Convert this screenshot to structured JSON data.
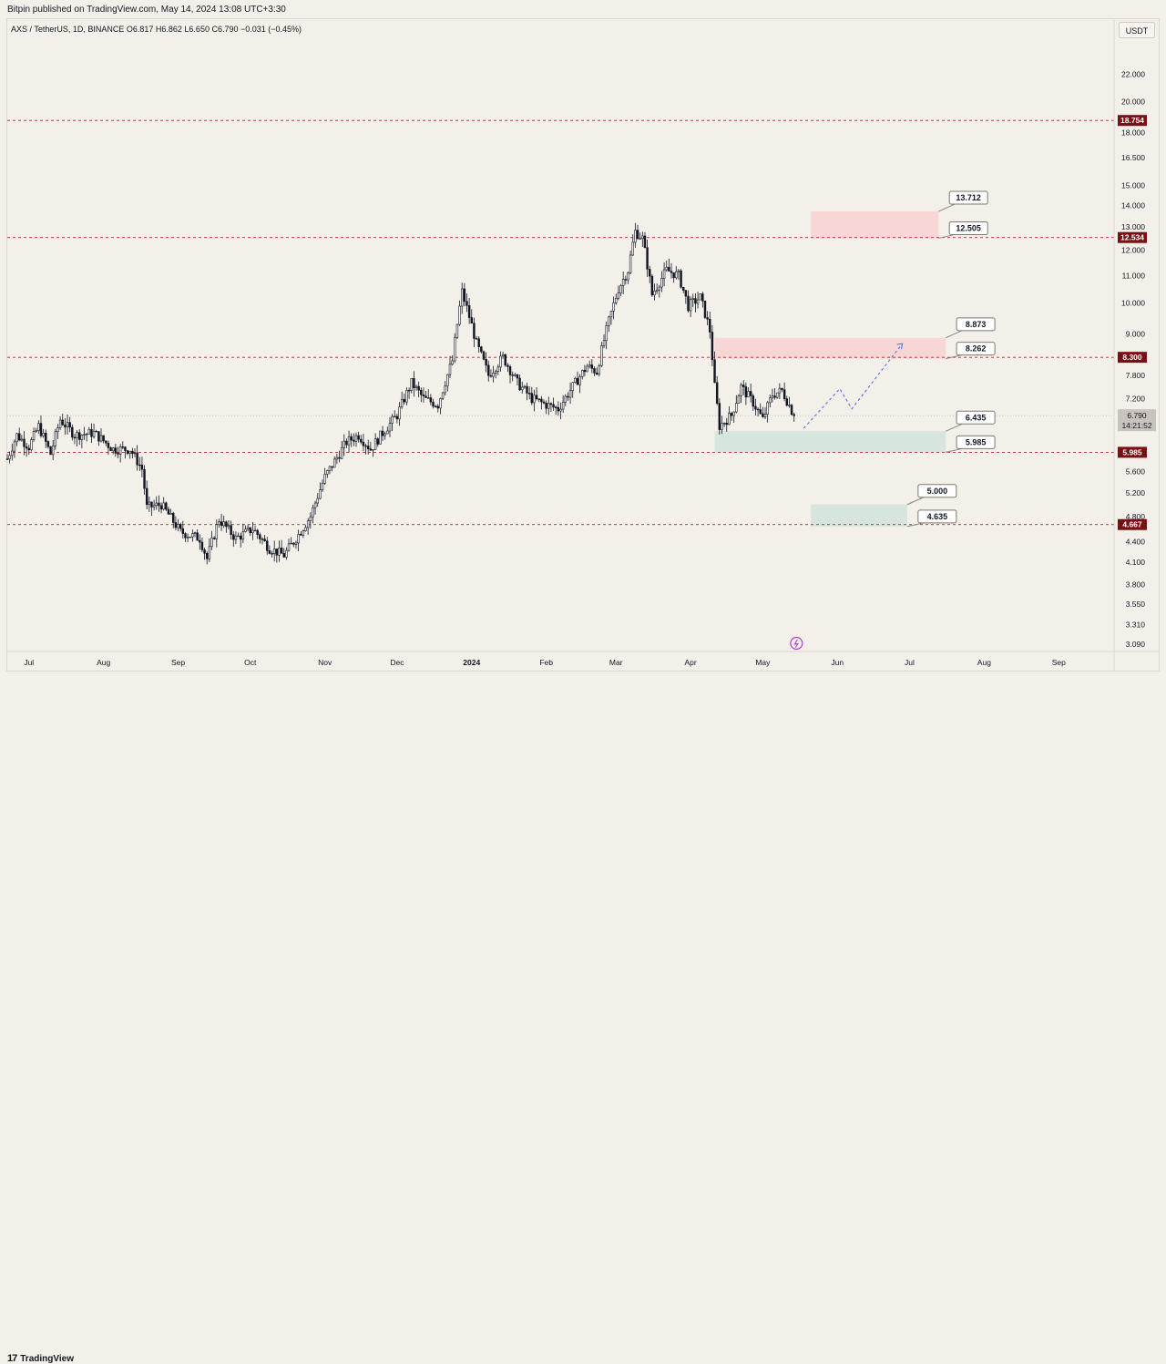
{
  "header": {
    "published": "Bitpin published on TradingView.com, May 14, 2024 13:08 UTC+3:30",
    "symbol_line": "AXS / TetherUS, 1D, BINANCE  O6.817  H6.862  L6.650  C6.790  −0.031 (−0.45%)"
  },
  "toolbar": {
    "currency_button": "USDT"
  },
  "footer": {
    "logo_mark": "17",
    "logo_text": "TradingView"
  },
  "colors": {
    "background": "#f3efe9",
    "candle": "#131722",
    "level_line": "#b22833",
    "level_tag": "#7a1016",
    "supply_zone": "#f5d5d5",
    "demand_zone": "#d4e4dc",
    "projection": "#5b6cf0",
    "price_tag": "#c8c4bd"
  },
  "chart_data": {
    "type": "candlestick",
    "symbol": "AXS / TetherUS",
    "interval": "1D",
    "exchange": "BINANCE",
    "ohlc_last": {
      "open": 6.817,
      "high": 6.862,
      "low": 6.65,
      "close": 6.79,
      "change": -0.031,
      "change_pct": -0.45
    },
    "y_scale": "log",
    "ylim": [
      2.95,
      25.2
    ],
    "x_range": [
      "2023-06-22",
      "2024-09-24"
    ],
    "y_ticks": [
      "22.000",
      "20.000",
      "18.000",
      "16.500",
      "15.000",
      "14.000",
      "13.000",
      "12.000",
      "11.000",
      "10.000",
      "9.000",
      "7.800",
      "7.200",
      "5.600",
      "5.200",
      "4.800",
      "4.400",
      "4.100",
      "3.800",
      "3.550",
      "3.310",
      "3.090"
    ],
    "x_ticks": [
      {
        "label": "Jul",
        "date": "2023-07-01"
      },
      {
        "label": "Aug",
        "date": "2023-08-01"
      },
      {
        "label": "Sep",
        "date": "2023-09-01"
      },
      {
        "label": "Oct",
        "date": "2023-10-01"
      },
      {
        "label": "Nov",
        "date": "2023-11-01"
      },
      {
        "label": "Dec",
        "date": "2023-12-01"
      },
      {
        "label": "2024",
        "date": "2024-01-01"
      },
      {
        "label": "Feb",
        "date": "2024-02-01"
      },
      {
        "label": "Mar",
        "date": "2024-03-01"
      },
      {
        "label": "Apr",
        "date": "2024-04-01"
      },
      {
        "label": "May",
        "date": "2024-05-01"
      },
      {
        "label": "Jun",
        "date": "2024-06-01"
      },
      {
        "label": "Jul",
        "date": "2024-07-01"
      },
      {
        "label": "Aug",
        "date": "2024-08-01"
      },
      {
        "label": "Sep",
        "date": "2024-09-01"
      }
    ],
    "horizontal_levels": [
      {
        "value": 18.754,
        "label": "18.754"
      },
      {
        "value": 12.534,
        "label": "12.534"
      },
      {
        "value": 8.3,
        "label": "8.300"
      },
      {
        "value": 5.985,
        "label": "5.985"
      },
      {
        "value": 4.667,
        "label": "4.667"
      }
    ],
    "current_price": {
      "value": 6.79,
      "label": "6.790",
      "countdown": "14:21:52"
    },
    "zones": [
      {
        "kind": "supply",
        "top": 13.712,
        "bottom": 12.505,
        "start": "2024-05-21",
        "end": "2024-07-13",
        "top_label": "13.712",
        "bottom_label": "12.505"
      },
      {
        "kind": "supply",
        "top": 8.873,
        "bottom": 8.262,
        "start": "2024-04-11",
        "end": "2024-07-16",
        "top_label": "8.873",
        "bottom_label": "8.262"
      },
      {
        "kind": "demand",
        "top": 6.435,
        "bottom": 5.985,
        "start": "2024-04-11",
        "end": "2024-07-16",
        "top_label": "6.435",
        "bottom_label": "5.985"
      },
      {
        "kind": "demand",
        "top": 5.0,
        "bottom": 4.635,
        "start": "2024-05-21",
        "end": "2024-06-30",
        "top_label": "5.000",
        "bottom_label": "4.635"
      }
    ],
    "projection_path": [
      {
        "date": "2024-05-18",
        "price": 6.5
      },
      {
        "date": "2024-06-02",
        "price": 7.45
      },
      {
        "date": "2024-06-07",
        "price": 6.95
      },
      {
        "date": "2024-06-28",
        "price": 8.7
      }
    ],
    "close_path": [
      {
        "date": "2023-06-22",
        "price": 5.85
      },
      {
        "date": "2023-06-26",
        "price": 6.35
      },
      {
        "date": "2023-07-01",
        "price": 6.1
      },
      {
        "date": "2023-07-05",
        "price": 6.55
      },
      {
        "date": "2023-07-10",
        "price": 5.95
      },
      {
        "date": "2023-07-14",
        "price": 6.7
      },
      {
        "date": "2023-07-20",
        "price": 6.35
      },
      {
        "date": "2023-07-28",
        "price": 6.4
      },
      {
        "date": "2023-08-05",
        "price": 6.05
      },
      {
        "date": "2023-08-12",
        "price": 6.05
      },
      {
        "date": "2023-08-17",
        "price": 5.65
      },
      {
        "date": "2023-08-19",
        "price": 4.95
      },
      {
        "date": "2023-08-25",
        "price": 5.0
      },
      {
        "date": "2023-09-02",
        "price": 4.55
      },
      {
        "date": "2023-09-10",
        "price": 4.45
      },
      {
        "date": "2023-09-13",
        "price": 4.15
      },
      {
        "date": "2023-09-18",
        "price": 4.75
      },
      {
        "date": "2023-09-25",
        "price": 4.45
      },
      {
        "date": "2023-10-02",
        "price": 4.6
      },
      {
        "date": "2023-10-09",
        "price": 4.3
      },
      {
        "date": "2023-10-15",
        "price": 4.2
      },
      {
        "date": "2023-10-20",
        "price": 4.45
      },
      {
        "date": "2023-10-26",
        "price": 4.8
      },
      {
        "date": "2023-11-01",
        "price": 5.5
      },
      {
        "date": "2023-11-05",
        "price": 5.8
      },
      {
        "date": "2023-11-10",
        "price": 6.2
      },
      {
        "date": "2023-11-15",
        "price": 6.35
      },
      {
        "date": "2023-11-20",
        "price": 6.05
      },
      {
        "date": "2023-11-25",
        "price": 6.4
      },
      {
        "date": "2023-12-01",
        "price": 6.8
      },
      {
        "date": "2023-12-07",
        "price": 7.6
      },
      {
        "date": "2023-12-12",
        "price": 7.2
      },
      {
        "date": "2023-12-18",
        "price": 7.05
      },
      {
        "date": "2023-12-24",
        "price": 8.2
      },
      {
        "date": "2023-12-28",
        "price": 10.4
      },
      {
        "date": "2024-01-03",
        "price": 8.7
      },
      {
        "date": "2024-01-08",
        "price": 7.8
      },
      {
        "date": "2024-01-14",
        "price": 8.3
      },
      {
        "date": "2024-01-20",
        "price": 7.6
      },
      {
        "date": "2024-01-26",
        "price": 7.2
      },
      {
        "date": "2024-02-01",
        "price": 7.05
      },
      {
        "date": "2024-02-06",
        "price": 6.95
      },
      {
        "date": "2024-02-12",
        "price": 7.5
      },
      {
        "date": "2024-02-18",
        "price": 8.05
      },
      {
        "date": "2024-02-22",
        "price": 7.9
      },
      {
        "date": "2024-02-27",
        "price": 9.4
      },
      {
        "date": "2024-03-02",
        "price": 10.5
      },
      {
        "date": "2024-03-06",
        "price": 11.2
      },
      {
        "date": "2024-03-09",
        "price": 12.8
      },
      {
        "date": "2024-03-12",
        "price": 12.5
      },
      {
        "date": "2024-03-16",
        "price": 10.3
      },
      {
        "date": "2024-03-22",
        "price": 11.2
      },
      {
        "date": "2024-03-27",
        "price": 11.0
      },
      {
        "date": "2024-03-31",
        "price": 9.9
      },
      {
        "date": "2024-04-05",
        "price": 10.2
      },
      {
        "date": "2024-04-09",
        "price": 9.1
      },
      {
        "date": "2024-04-11",
        "price": 7.5
      },
      {
        "date": "2024-04-13",
        "price": 6.55
      },
      {
        "date": "2024-04-18",
        "price": 6.8
      },
      {
        "date": "2024-04-22",
        "price": 7.5
      },
      {
        "date": "2024-04-27",
        "price": 7.1
      },
      {
        "date": "2024-05-01",
        "price": 6.7
      },
      {
        "date": "2024-05-05",
        "price": 7.3
      },
      {
        "date": "2024-05-09",
        "price": 7.4
      },
      {
        "date": "2024-05-14",
        "price": 6.79
      }
    ]
  }
}
